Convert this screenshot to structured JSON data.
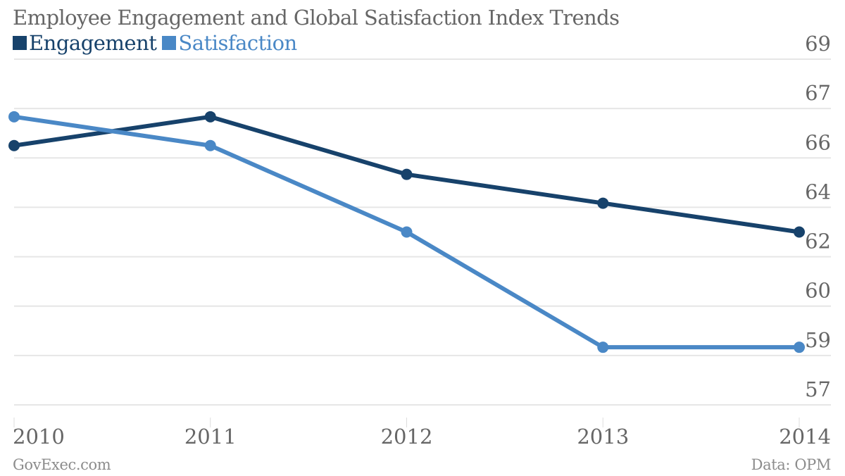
{
  "chart_data": {
    "type": "line",
    "title": "Employee Engagement and Global Satisfaction Index Trends",
    "xlabel": "",
    "ylabel": "",
    "x": [
      "2010",
      "2011",
      "2012",
      "2013",
      "2014"
    ],
    "series": [
      {
        "name": "Engagement",
        "color": "#17426b",
        "values": [
          66,
          67,
          65,
          64,
          63
        ]
      },
      {
        "name": "Satisfaction",
        "color": "#4a88c6",
        "values": [
          67,
          66,
          63,
          59,
          59
        ]
      }
    ],
    "ylim": [
      57,
      69
    ],
    "yticks": [
      57,
      58.714,
      60.429,
      62.143,
      63.857,
      65.571,
      67.286,
      69
    ],
    "ytick_labels": [
      "57",
      "59",
      "60",
      "62",
      "64",
      "66",
      "67",
      "69"
    ],
    "grid": true,
    "yaxis_position": "right",
    "legend_position": "top-left"
  },
  "footer": {
    "source_left": "GovExec.com",
    "source_right": "Data: OPM"
  },
  "colors": {
    "grid": "#e6e6e6",
    "text": "#666666",
    "credit": "#8c8c8c"
  }
}
